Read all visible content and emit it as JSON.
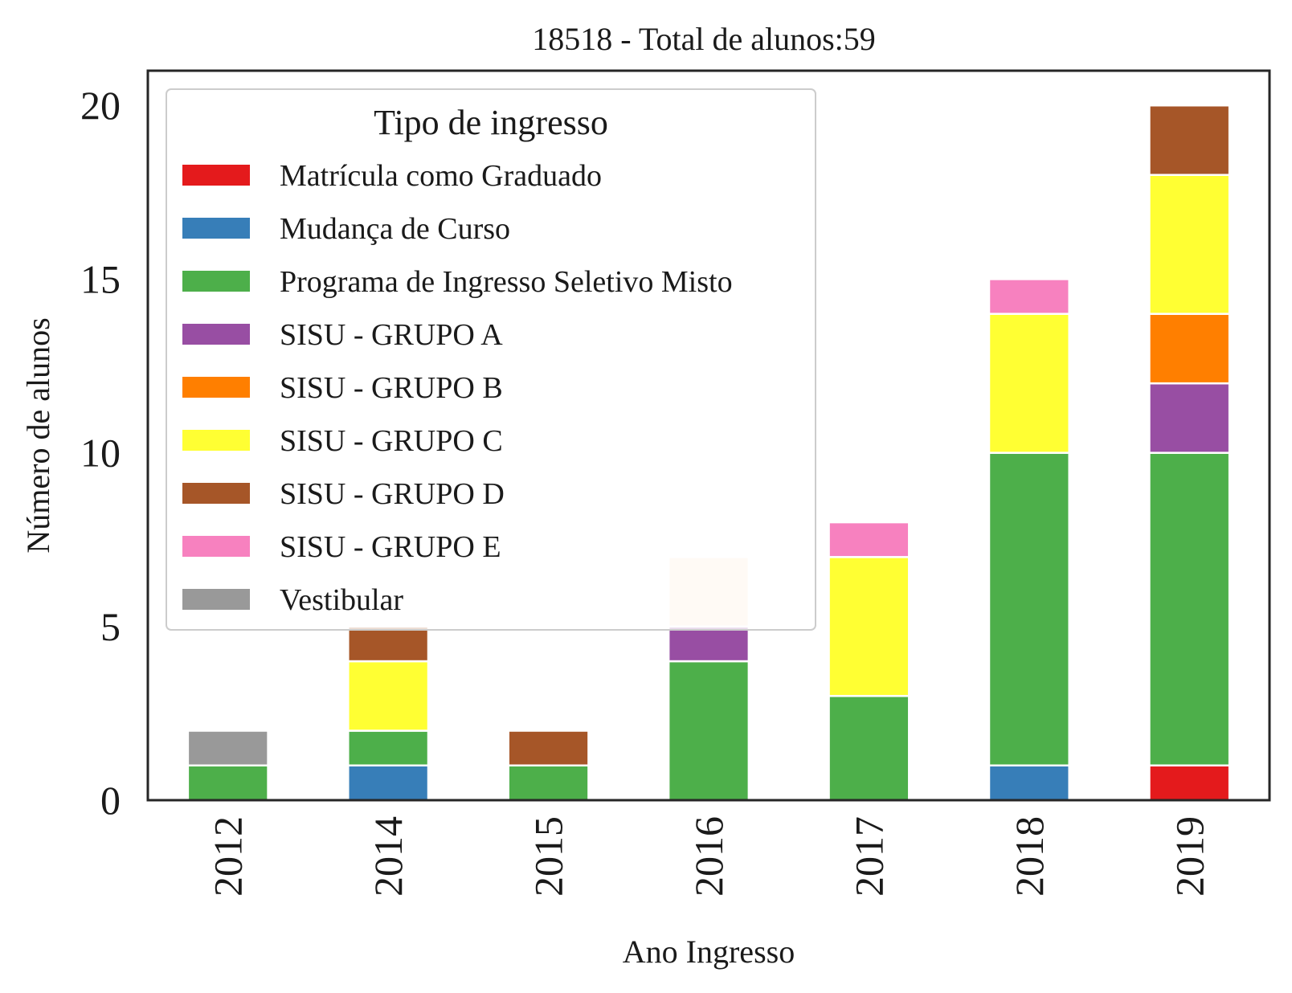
{
  "chart_data": {
    "type": "bar",
    "stacked": true,
    "title": "18518 - Total de alunos:59",
    "xlabel": "Ano Ingresso",
    "ylabel": "Número de alunos",
    "ylim": [
      0,
      21
    ],
    "yticks": [
      0,
      5,
      10,
      15,
      20
    ],
    "categories": [
      "2012",
      "2014",
      "2015",
      "2016",
      "2017",
      "2018",
      "2019"
    ],
    "legend": {
      "title": "Tipo de ingresso",
      "placement": "top-left"
    },
    "series": [
      {
        "name": "Matrícula como Graduado",
        "color": "#e41a1c",
        "values": [
          0,
          0,
          0,
          0,
          0,
          0,
          1
        ]
      },
      {
        "name": "Mudança de Curso",
        "color": "#377eb8",
        "values": [
          0,
          1,
          0,
          0,
          0,
          1,
          0
        ]
      },
      {
        "name": "Programa de Ingresso Seletivo Misto",
        "color": "#4daf4a",
        "values": [
          1,
          1,
          1,
          4,
          3,
          9,
          9
        ]
      },
      {
        "name": "SISU - GRUPO A",
        "color": "#984ea3",
        "values": [
          0,
          0,
          0,
          1,
          0,
          0,
          2
        ]
      },
      {
        "name": "SISU - GRUPO B",
        "color": "#ff7f00",
        "values": [
          0,
          0,
          0,
          0,
          0,
          0,
          2
        ]
      },
      {
        "name": "SISU - GRUPO C",
        "color": "#ffff33",
        "values": [
          0,
          2,
          0,
          0,
          4,
          4,
          4
        ]
      },
      {
        "name": "SISU - GRUPO D",
        "color": "#a65628",
        "values": [
          0,
          1,
          1,
          0,
          0,
          0,
          2
        ]
      },
      {
        "name": "SISU - GRUPO E",
        "color": "#f781bf",
        "values": [
          0,
          0,
          0,
          0,
          1,
          1,
          0
        ]
      },
      {
        "name": "Vestibular",
        "color": "#999999",
        "values": [
          1,
          0,
          0,
          0,
          0,
          0,
          0
        ]
      },
      {
        "color": "#ffe4cc",
        "values": [
          0,
          0,
          0,
          2,
          0,
          0,
          0
        ]
      }
    ]
  }
}
